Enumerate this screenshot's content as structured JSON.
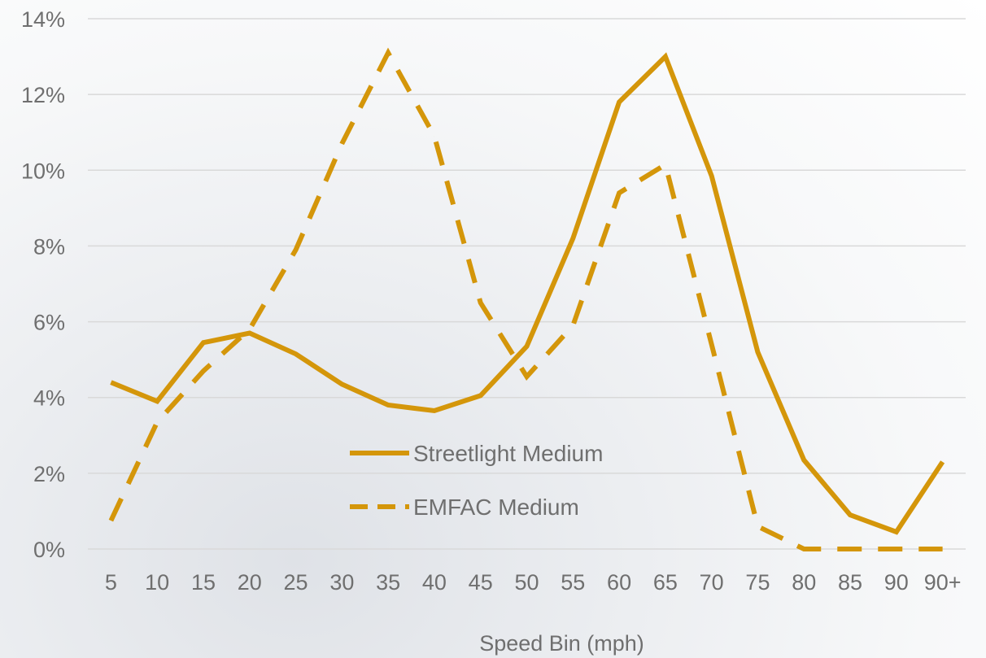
{
  "chart_data": {
    "type": "line",
    "title": "",
    "xlabel": "Speed Bin (mph)",
    "ylabel": "",
    "categories": [
      "5",
      "10",
      "15",
      "20",
      "25",
      "30",
      "35",
      "40",
      "45",
      "50",
      "55",
      "60",
      "65",
      "70",
      "75",
      "80",
      "85",
      "90",
      "90+"
    ],
    "y_ticks": [
      "0%",
      "2%",
      "4%",
      "6%",
      "8%",
      "10%",
      "12%",
      "14%"
    ],
    "ylim": [
      0,
      14
    ],
    "grid": true,
    "legend_position": "center",
    "series": [
      {
        "name": "Streetlight Medium",
        "style": "solid",
        "color": "#d4960a",
        "values": [
          4.4,
          3.9,
          5.45,
          5.7,
          5.15,
          4.35,
          3.8,
          3.65,
          4.05,
          5.35,
          8.2,
          11.8,
          13.0,
          9.85,
          5.2,
          2.35,
          0.9,
          0.45,
          2.3
        ]
      },
      {
        "name": "EMFAC Medium",
        "style": "dashed",
        "color": "#d4960a",
        "values": [
          0.75,
          3.35,
          4.7,
          5.8,
          7.9,
          10.7,
          13.1,
          10.9,
          6.5,
          4.55,
          5.9,
          9.4,
          10.15,
          5.4,
          0.6,
          0.0,
          0.0,
          0.0,
          0.0
        ]
      }
    ]
  }
}
